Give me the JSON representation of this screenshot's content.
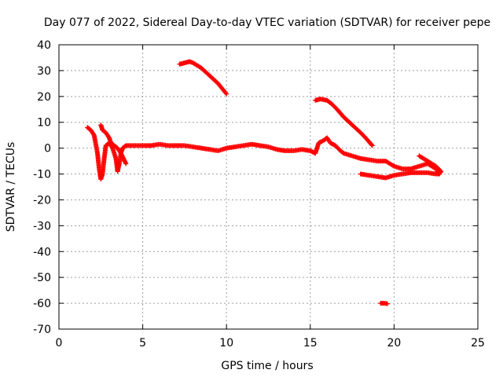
{
  "chart_data": {
    "type": "scatter",
    "title": "Day 077 of 2022, Sidereal Day-to-day VTEC variation (SDTVAR) for receiver pepe",
    "xlabel": "GPS time / hours",
    "ylabel": "SDTVAR / TECUs",
    "xlim": [
      0,
      25
    ],
    "ylim": [
      -70,
      40
    ],
    "xticks": [
      0,
      5,
      10,
      15,
      20,
      25
    ],
    "yticks": [
      40,
      30,
      20,
      10,
      0,
      -10,
      -20,
      -30,
      -40,
      -50,
      -60,
      -70
    ],
    "grid": true,
    "legend": "none",
    "marker": "+",
    "color": "#ff0000",
    "series": [
      {
        "name": "main-trace",
        "points": [
          [
            1.7,
            8
          ],
          [
            1.9,
            7
          ],
          [
            2.1,
            5
          ],
          [
            2.3,
            -2
          ],
          [
            2.4,
            -8
          ],
          [
            2.5,
            -12
          ],
          [
            2.6,
            -10
          ],
          [
            2.7,
            -4
          ],
          [
            2.8,
            1
          ],
          [
            3.0,
            2
          ],
          [
            3.2,
            0
          ],
          [
            3.4,
            -4
          ],
          [
            3.5,
            -9
          ],
          [
            3.6,
            -6
          ],
          [
            3.7,
            -2
          ],
          [
            3.8,
            0
          ],
          [
            4.0,
            1
          ],
          [
            4.5,
            1
          ],
          [
            5.0,
            1
          ],
          [
            5.5,
            1
          ],
          [
            6.0,
            1.5
          ],
          [
            6.5,
            1
          ],
          [
            7.0,
            1
          ],
          [
            7.5,
            1
          ],
          [
            8.0,
            0.5
          ],
          [
            8.5,
            0
          ],
          [
            9.0,
            -0.5
          ],
          [
            9.5,
            -1
          ],
          [
            10.0,
            0
          ],
          [
            10.5,
            0.5
          ],
          [
            11.0,
            1
          ],
          [
            11.5,
            1.5
          ],
          [
            12.0,
            1
          ],
          [
            12.5,
            0.5
          ],
          [
            13.0,
            -0.5
          ],
          [
            13.5,
            -1
          ],
          [
            14.0,
            -1
          ],
          [
            14.5,
            -0.5
          ],
          [
            15.0,
            -1
          ],
          [
            15.3,
            -2
          ],
          [
            15.5,
            2
          ],
          [
            15.8,
            3
          ],
          [
            16.0,
            4
          ],
          [
            16.2,
            2
          ],
          [
            16.5,
            1
          ],
          [
            16.8,
            -1
          ],
          [
            17.0,
            -2
          ],
          [
            17.5,
            -3
          ],
          [
            18.0,
            -4
          ],
          [
            18.5,
            -4.5
          ],
          [
            19.0,
            -5
          ],
          [
            19.5,
            -5
          ],
          [
            20.0,
            -7
          ],
          [
            20.5,
            -8
          ],
          [
            21.0,
            -8
          ],
          [
            21.5,
            -7
          ],
          [
            22.0,
            -6
          ],
          [
            22.5,
            -8
          ],
          [
            22.7,
            -10
          ]
        ]
      },
      {
        "name": "spike-trace",
        "points": [
          [
            2.5,
            9
          ],
          [
            2.6,
            7
          ],
          [
            2.8,
            6
          ],
          [
            3.0,
            4
          ],
          [
            3.1,
            2
          ],
          [
            3.3,
            1
          ],
          [
            3.5,
            0
          ],
          [
            3.7,
            -2
          ],
          [
            4.0,
            -6
          ]
        ]
      },
      {
        "name": "arc-1",
        "points": [
          [
            7.2,
            32.5
          ],
          [
            7.5,
            33
          ],
          [
            7.8,
            33.5
          ],
          [
            8.0,
            33
          ],
          [
            8.5,
            31
          ],
          [
            9.0,
            28
          ],
          [
            9.5,
            25
          ],
          [
            10.0,
            21
          ]
        ]
      },
      {
        "name": "arc-2",
        "points": [
          [
            15.3,
            18.5
          ],
          [
            15.6,
            19
          ],
          [
            16.0,
            18.5
          ],
          [
            16.3,
            17
          ],
          [
            16.6,
            15
          ],
          [
            17.0,
            12
          ],
          [
            17.5,
            9
          ],
          [
            18.0,
            6
          ],
          [
            18.3,
            4
          ],
          [
            18.7,
            1
          ]
        ]
      },
      {
        "name": "segment-late",
        "points": [
          [
            18.0,
            -10
          ],
          [
            18.5,
            -10.5
          ],
          [
            19.0,
            -11
          ],
          [
            19.5,
            -11.5
          ],
          [
            20.0,
            -10.5
          ],
          [
            20.5,
            -10
          ],
          [
            21.0,
            -9.5
          ],
          [
            21.5,
            -9.5
          ],
          [
            22.0,
            -9.5
          ],
          [
            22.5,
            -10
          ],
          [
            22.7,
            -10
          ],
          [
            22.8,
            -9
          ],
          [
            22.5,
            -7
          ],
          [
            22.0,
            -5
          ],
          [
            21.5,
            -3
          ]
        ]
      },
      {
        "name": "outlier",
        "points": [
          [
            19.2,
            -60
          ],
          [
            19.4,
            -60
          ],
          [
            19.6,
            -60.2
          ]
        ]
      }
    ]
  }
}
